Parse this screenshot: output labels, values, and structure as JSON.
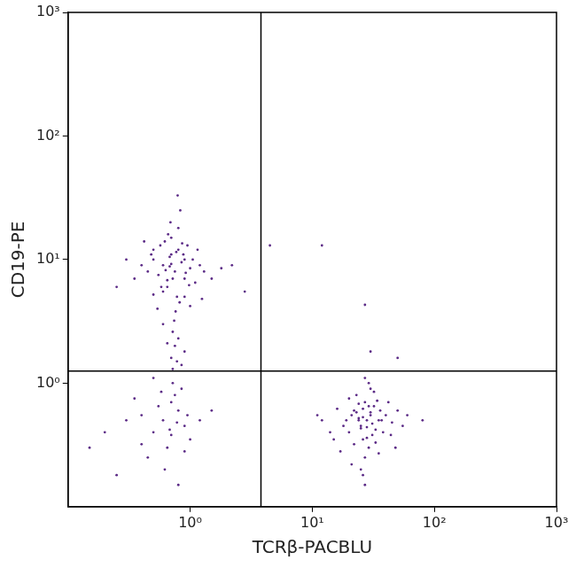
{
  "chart_data": {
    "type": "scatter",
    "x_label": "TCRβ-PACBLU",
    "y_label": "CD19-PE",
    "log": true,
    "grid": false,
    "color": "#5b2a86",
    "marker": "circle",
    "xlim": [
      0.1,
      1000
    ],
    "ylim": [
      0.1,
      1000
    ],
    "xticks": [
      {
        "value": 1,
        "label": "10⁰"
      },
      {
        "value": 10,
        "label": "10¹"
      },
      {
        "value": 100,
        "label": "10²"
      },
      {
        "value": 1000,
        "label": "10³"
      }
    ],
    "yticks": [
      {
        "value": 1,
        "label": "10⁰"
      },
      {
        "value": 10,
        "label": "10¹"
      },
      {
        "value": 100,
        "label": "10²"
      },
      {
        "value": 1000,
        "label": "10³"
      }
    ],
    "quadrant_gates": {
      "x": 3.8,
      "y": 1.25
    },
    "x": [
      0.75,
      0.6,
      0.9,
      0.5,
      0.8,
      1.0,
      0.65,
      0.7,
      0.85,
      0.55,
      0.45,
      1.1,
      0.95,
      0.62,
      0.78,
      0.68,
      0.88,
      0.72,
      0.58,
      1.2,
      0.4,
      0.5,
      1.3,
      0.82,
      0.7,
      0.6,
      0.9,
      1.05,
      0.35,
      0.76,
      0.66,
      0.92,
      0.54,
      0.48,
      1.15,
      0.8,
      0.7,
      0.63,
      0.98,
      0.86,
      0.3,
      1.5,
      0.25,
      1.8,
      0.74,
      0.69,
      0.57,
      1.25,
      0.83,
      0.6,
      0.72,
      0.79,
      0.9,
      0.65,
      0.5,
      2.2,
      0.42,
      0.77,
      1.0,
      0.68,
      0.75,
      0.7,
      0.85,
      0.8,
      0.72,
      0.9,
      0.65,
      0.78,
      0.6,
      0.8,
      0.5,
      0.7,
      0.9,
      0.4,
      1.0,
      0.65,
      0.75,
      0.3,
      0.55,
      0.85,
      0.2,
      1.2,
      0.45,
      0.72,
      0.62,
      0.95,
      0.35,
      0.68,
      0.15,
      0.25,
      0.8,
      0.58,
      1.5,
      0.7,
      0.5,
      0.9,
      0.4,
      0.78,
      28,
      25,
      30,
      22,
      35,
      20,
      32,
      26,
      27,
      24,
      18,
      40,
      29,
      23,
      33,
      21,
      31,
      36,
      19,
      45,
      15,
      50,
      27,
      24,
      30,
      26,
      28,
      22,
      34,
      38,
      12,
      60,
      17,
      42,
      25,
      29,
      31,
      23,
      27,
      33,
      14,
      55,
      20,
      37,
      26,
      28,
      24,
      32,
      30,
      80,
      16,
      48,
      21,
      35,
      27,
      25,
      29,
      11,
      44,
      26,
      4.5,
      12,
      27,
      30,
      50,
      2.8
    ],
    "values": [
      8,
      9,
      7,
      10,
      12,
      8.5,
      6,
      11,
      9.5,
      7.5,
      8,
      6.5,
      13,
      14,
      5,
      10.5,
      11,
      7,
      6,
      9,
      9,
      12,
      8,
      4.5,
      15,
      5.5,
      5,
      10,
      7,
      3.8,
      16,
      7.8,
      4,
      11,
      12,
      18,
      9.2,
      8.2,
      6.2,
      13.5,
      10,
      7,
      6,
      8.5,
      3.2,
      20,
      13,
      4.8,
      25,
      3,
      2.6,
      33,
      10,
      6.8,
      5.2,
      9,
      14,
      11.5,
      4.2,
      8.8,
      2.0,
      1.6,
      1.4,
      2.3,
      1.3,
      1.8,
      2.1,
      1.5,
      0.5,
      0.6,
      0.4,
      0.7,
      0.45,
      0.55,
      0.35,
      0.3,
      0.8,
      0.5,
      0.65,
      0.9,
      0.4,
      0.5,
      0.25,
      1.0,
      0.2,
      0.55,
      0.75,
      0.42,
      0.3,
      0.18,
      0.15,
      0.85,
      0.6,
      0.38,
      1.1,
      0.28,
      0.32,
      0.48,
      0.5,
      0.45,
      0.55,
      0.6,
      0.5,
      0.4,
      0.65,
      0.35,
      0.7,
      0.5,
      0.45,
      0.55,
      0.3,
      0.8,
      0.42,
      0.55,
      0.38,
      0.6,
      0.5,
      0.48,
      0.35,
      0.6,
      0.25,
      0.52,
      0.9,
      0.62,
      0.44,
      0.32,
      0.72,
      0.4,
      0.5,
      0.55,
      0.28,
      0.7,
      0.2,
      1.0,
      0.47,
      0.58,
      0.15,
      0.33,
      0.4,
      0.45,
      0.75,
      0.5,
      0.53,
      0.36,
      0.68,
      0.85,
      0.58,
      0.5,
      0.62,
      0.3,
      0.22,
      0.27,
      1.1,
      0.43,
      0.65,
      0.55,
      0.38,
      0.18,
      13,
      13,
      4.3,
      1.8,
      1.6,
      5.5
    ]
  }
}
